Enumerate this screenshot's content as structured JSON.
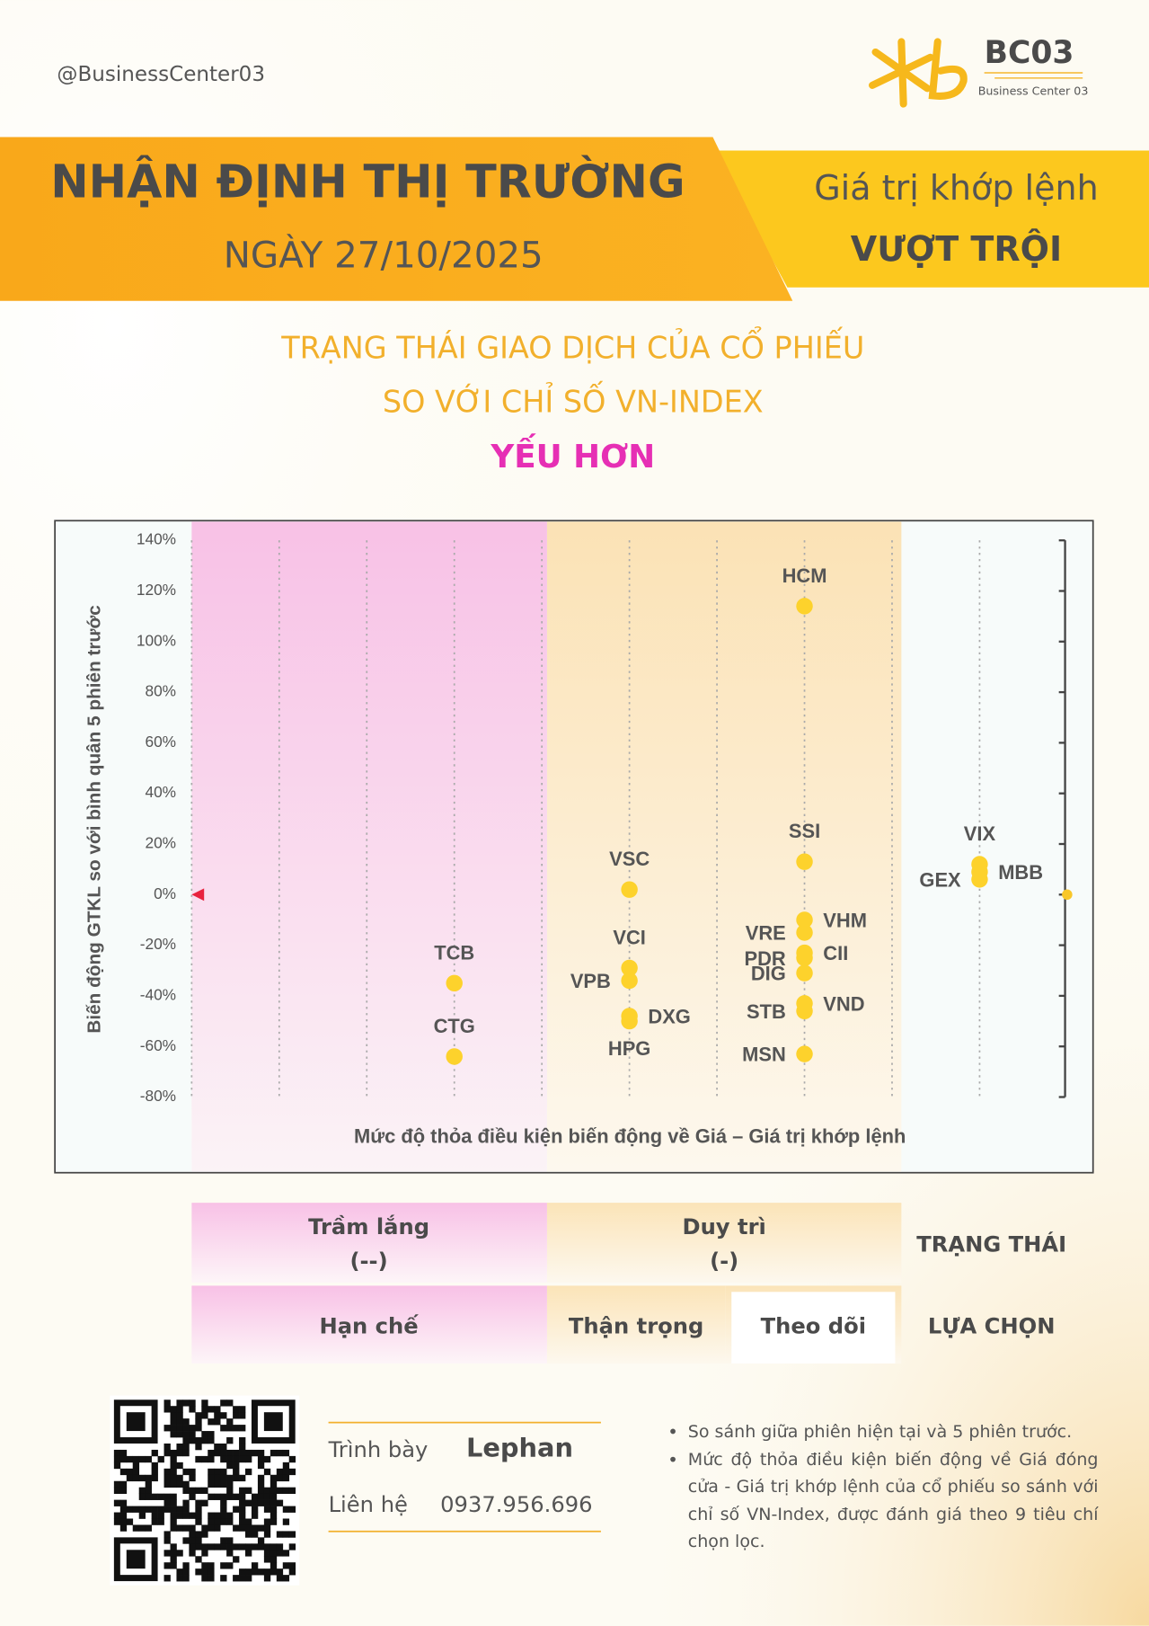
{
  "header": {
    "handle": "@BusinessCenter03",
    "logo_title": "BC03",
    "logo_subtitle": "Business Center 03"
  },
  "banner": {
    "title": "NHẬN ĐỊNH THỊ TRƯỜNG",
    "date": "NGÀY 27/10/2025",
    "tagline": "Giá trị khớp lệnh",
    "tagline_bold": "VƯỢT TRỘI"
  },
  "chart_data": {
    "type": "scatter",
    "title": [
      "TRẠNG THÁI GIAO DỊCH CỦA CỔ PHIẾU",
      "SO VỚI CHỈ SỐ VN-INDEX"
    ],
    "subtitle": "YẾU HƠN",
    "y_label": "Biến động GTKL so với bình quân 5 phiên trước",
    "x_label": "Mức độ thỏa điều kiện biến động về Giá – Giá trị khớp lệnh",
    "color": "#fdd22c",
    "labels": [
      "HCM",
      "SSI",
      "VSC",
      "VIX",
      "MBB",
      "GEX",
      "VHM",
      "VRE",
      "CII",
      "PDR",
      "DIG",
      "VND",
      "STB",
      "MSN",
      "VCI",
      "VPB",
      "DXG",
      "HPG",
      "TCB",
      "CTG"
    ],
    "x": [
      7,
      7,
      5,
      9,
      9,
      9,
      7,
      7,
      7,
      7,
      7,
      7,
      7,
      7,
      5,
      5,
      5,
      5,
      3,
      3
    ],
    "values": [
      114,
      13,
      2,
      12,
      9,
      6,
      -10,
      -15,
      -23,
      -25,
      -31,
      -43,
      -46,
      -63,
      -29,
      -34,
      -48,
      -50,
      -35,
      -64
    ],
    "xlim": [
      0,
      10
    ],
    "xticks": [
      0,
      1,
      2,
      3,
      4,
      5,
      6,
      7,
      8,
      9
    ],
    "ylim": [
      -80,
      140
    ],
    "yticks": [
      {
        "value": -80,
        "label": "-80%"
      },
      {
        "value": -60,
        "label": "-60%"
      },
      {
        "value": -40,
        "label": "-40%"
      },
      {
        "value": -20,
        "label": "-20%"
      },
      {
        "value": 0,
        "label": "0%"
      },
      {
        "value": 20,
        "label": "20%"
      },
      {
        "value": 40,
        "label": "40%"
      },
      {
        "value": 60,
        "label": "60%"
      },
      {
        "value": 80,
        "label": "80%"
      },
      {
        "value": 100,
        "label": "100%"
      },
      {
        "value": 120,
        "label": "120%"
      },
      {
        "value": 140,
        "label": "140%"
      }
    ]
  },
  "status_table": {
    "status": [
      [
        "Trầm lắng",
        "(--)"
      ],
      [
        "Duy trì",
        "(-)"
      ]
    ],
    "status_header": "TRẠNG THÁI",
    "choices": [
      "Hạn chế",
      "Thận trọng",
      "Theo dõi"
    ],
    "choice_header": "LỰA CHỌN"
  },
  "footer": {
    "presenter_label": "Trình bày",
    "presenter": "Lephan",
    "contact_label": "Liên hệ",
    "contact": "0937.956.696",
    "notes": [
      "So sánh giữa phiên hiện tại và 5 phiên trước.",
      "Mức độ thỏa điều kiện biến động về Giá đóng cửa - Giá trị khớp lệnh của cổ phiếu so sánh với chỉ số VN-Index, được đánh giá theo 9 tiêu chí chọn lọc."
    ]
  }
}
